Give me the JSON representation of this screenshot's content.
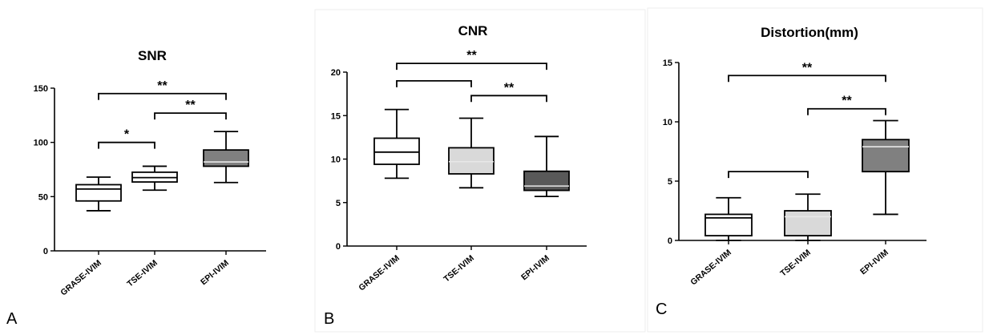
{
  "chart_data": [
    {
      "panel": "A",
      "type": "boxplot",
      "title": "SNR",
      "xlabel": "",
      "ylabel": "",
      "categories": [
        "GRASE-IVIM",
        "TSE-IVIM",
        "EPI-IVIM"
      ],
      "ylim": [
        0,
        150
      ],
      "yticks": [
        0,
        50,
        100,
        150
      ],
      "boxes": [
        {
          "name": "GRASE-IVIM",
          "min": 37,
          "q1": 46,
          "median": 57,
          "q3": 61,
          "max": 68,
          "color": "#ffffff"
        },
        {
          "name": "TSE-IVIM",
          "min": 56,
          "q1": 63.5,
          "median": 67.5,
          "q3": 72.5,
          "max": 78,
          "color": "#ffffff"
        },
        {
          "name": "EPI-IVIM",
          "min": 63,
          "q1": 78,
          "median": 82,
          "q3": 93,
          "max": 110,
          "color": "#808080"
        }
      ],
      "significance": [
        {
          "from": 0,
          "to": 1,
          "label": "*",
          "y": 100
        },
        {
          "from": 1,
          "to": 2,
          "label": "**",
          "y": 127
        },
        {
          "from": 0,
          "to": 2,
          "label": "**",
          "y": 145
        }
      ]
    },
    {
      "panel": "B",
      "type": "boxplot",
      "title": "CNR",
      "xlabel": "",
      "ylabel": "",
      "categories": [
        "GRASE-IVIM",
        "TSE-IVIM",
        "EPI-IVIM"
      ],
      "ylim": [
        0,
        20
      ],
      "yticks": [
        0,
        5,
        10,
        15,
        20
      ],
      "boxes": [
        {
          "name": "GRASE-IVIM",
          "min": 7.8,
          "q1": 9.4,
          "median": 10.8,
          "q3": 12.4,
          "max": 15.7,
          "color": "#ffffff"
        },
        {
          "name": "TSE-IVIM",
          "min": 6.7,
          "q1": 8.3,
          "median": 9.7,
          "q3": 11.3,
          "max": 14.7,
          "color": "#d9d9d9"
        },
        {
          "name": "EPI-IVIM",
          "min": 5.7,
          "q1": 6.4,
          "median": 6.9,
          "q3": 8.6,
          "max": 12.6,
          "color": "#595959"
        }
      ],
      "significance": [
        {
          "from": 0,
          "to": 1,
          "label": "",
          "y": 19
        },
        {
          "from": 1,
          "to": 2,
          "label": "**",
          "y": 17.3
        },
        {
          "from": 0,
          "to": 2,
          "label": "**",
          "y": 21
        }
      ]
    },
    {
      "panel": "C",
      "type": "boxplot",
      "title": "Distortion(mm)",
      "xlabel": "",
      "ylabel": "",
      "categories": [
        "GRASE-IVIM",
        "TSE-IVIM",
        "EPI-IVIM"
      ],
      "ylim": [
        0,
        15
      ],
      "yticks": [
        0,
        5,
        10,
        15
      ],
      "boxes": [
        {
          "name": "GRASE-IVIM",
          "min": 0,
          "q1": 0.4,
          "median": 1.9,
          "q3": 2.2,
          "max": 3.6,
          "color": "#ffffff"
        },
        {
          "name": "TSE-IVIM",
          "min": 0,
          "q1": 0.4,
          "median": 2.0,
          "q3": 2.5,
          "max": 3.9,
          "color": "#d9d9d9"
        },
        {
          "name": "EPI-IVIM",
          "min": 2.2,
          "q1": 5.8,
          "median": 7.9,
          "q3": 8.5,
          "max": 10.1,
          "color": "#808080"
        }
      ],
      "significance": [
        {
          "from": 0,
          "to": 1,
          "label": "",
          "y": 5.8
        },
        {
          "from": 1,
          "to": 2,
          "label": "**",
          "y": 11.1
        },
        {
          "from": 0,
          "to": 2,
          "label": "**",
          "y": 13.9
        }
      ]
    }
  ]
}
